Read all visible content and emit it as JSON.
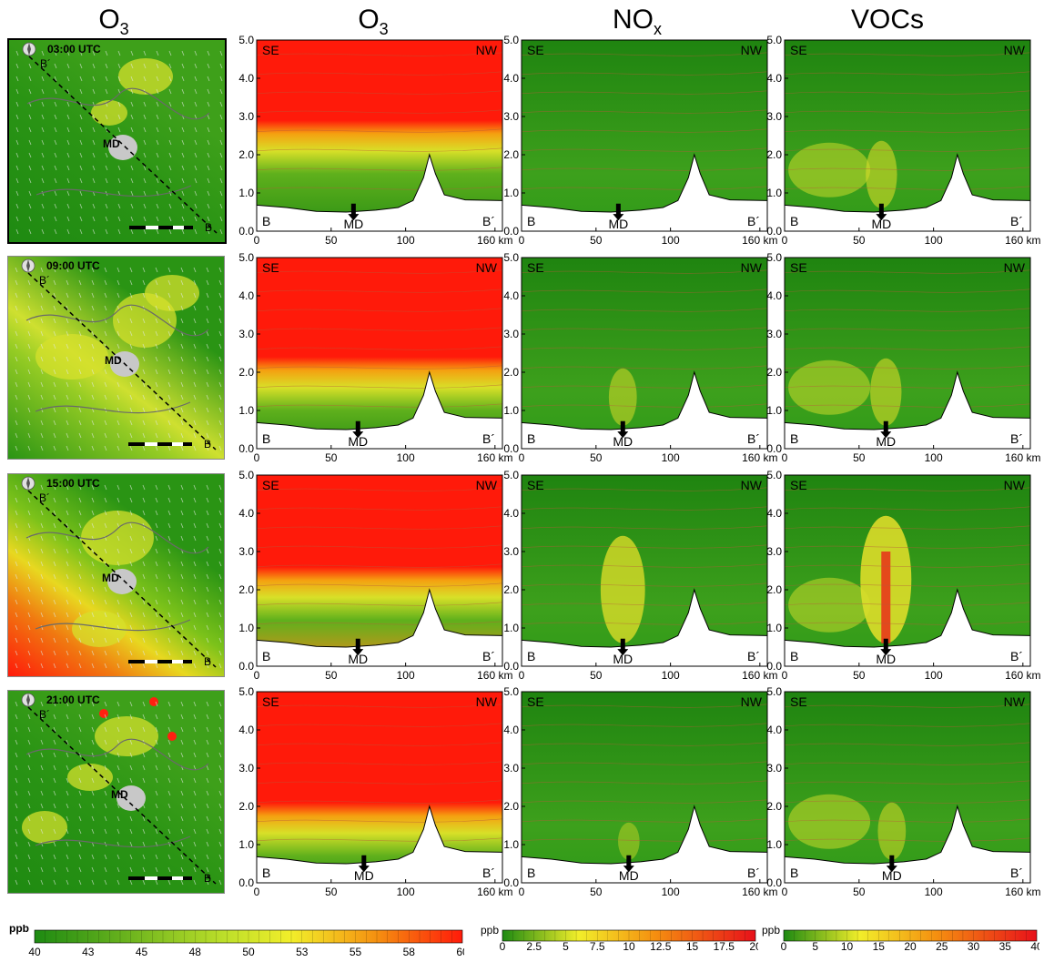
{
  "headers": {
    "map": {
      "base": "O",
      "sub": "3"
    },
    "o3": {
      "base": "O",
      "sub": "3"
    },
    "nox": {
      "base": "NO",
      "sub": "x"
    },
    "vocs": {
      "base": "VOCs",
      "sub": ""
    }
  },
  "rows": [
    {
      "time": "03:00 UTC",
      "city": "MD",
      "md_km": 65
    },
    {
      "time": "09:00 UTC",
      "city": "MD",
      "md_km": 68
    },
    {
      "time": "15:00 UTC",
      "city": "MD",
      "md_km": 68
    },
    {
      "time": "21:00 UTC",
      "city": "MD",
      "md_km": 72
    }
  ],
  "map_labels": {
    "end_a": "B",
    "end_b": "B´"
  },
  "section_labels": {
    "left": "SE",
    "right": "NW",
    "start": "B",
    "end": "B´",
    "marker": "MD"
  },
  "colors": {
    "low": "#1d8a12",
    "mid": "#f2ee2a",
    "high": "#ff1a0a",
    "terrain": "#ffffff",
    "city": "#c8c8c8"
  },
  "chart_data": {
    "type": "heatmap",
    "x_ticks": [
      "0",
      "50",
      "100",
      "160 km"
    ],
    "y_ticks": [
      "0.0",
      "1.0",
      "2.0",
      "3.0",
      "4.0",
      "5.0"
    ],
    "xlim": [
      0,
      165
    ],
    "ylim": [
      0,
      5
    ],
    "terrain_profile_km": [
      [
        0,
        0.68
      ],
      [
        20,
        0.62
      ],
      [
        40,
        0.52
      ],
      [
        60,
        0.5
      ],
      [
        80,
        0.55
      ],
      [
        95,
        0.62
      ],
      [
        105,
        0.8
      ],
      [
        112,
        1.4
      ],
      [
        116,
        2.0
      ],
      [
        120,
        1.5
      ],
      [
        126,
        0.95
      ],
      [
        140,
        0.82
      ],
      [
        165,
        0.8
      ]
    ],
    "colorbars": [
      {
        "unit": "ppb",
        "min": 40,
        "max": 60,
        "ticks": [
          "40",
          "43",
          "45",
          "48",
          "50",
          "53",
          "55",
          "58",
          "60"
        ]
      },
      {
        "unit": "ppb",
        "min": 0,
        "max": 20,
        "ticks": [
          "0",
          "2.5",
          "5",
          "7.5",
          "10",
          "12.5",
          "15",
          "17.5",
          "20"
        ]
      },
      {
        "unit": "ppb",
        "min": 0,
        "max": 40,
        "ticks": [
          "0",
          "5",
          "10",
          "15",
          "20",
          "25",
          "30",
          "35",
          "40"
        ]
      }
    ],
    "panels": {
      "o3": [
        {
          "layer_top_km": 2.9,
          "surface": "green"
        },
        {
          "layer_top_km": 2.4,
          "surface": "green"
        },
        {
          "layer_top_km": 2.6,
          "surface": "orange"
        },
        {
          "layer_top_km": 2.1,
          "surface": "green"
        }
      ],
      "nox": [
        {
          "plume": 0.0
        },
        {
          "plume": 0.3
        },
        {
          "plume": 0.8
        },
        {
          "plume": 0.1
        }
      ],
      "vocs": [
        {
          "plume": 0.4
        },
        {
          "plume": 0.4
        },
        {
          "plume": 1.0
        },
        {
          "plume": 0.3
        }
      ]
    }
  }
}
